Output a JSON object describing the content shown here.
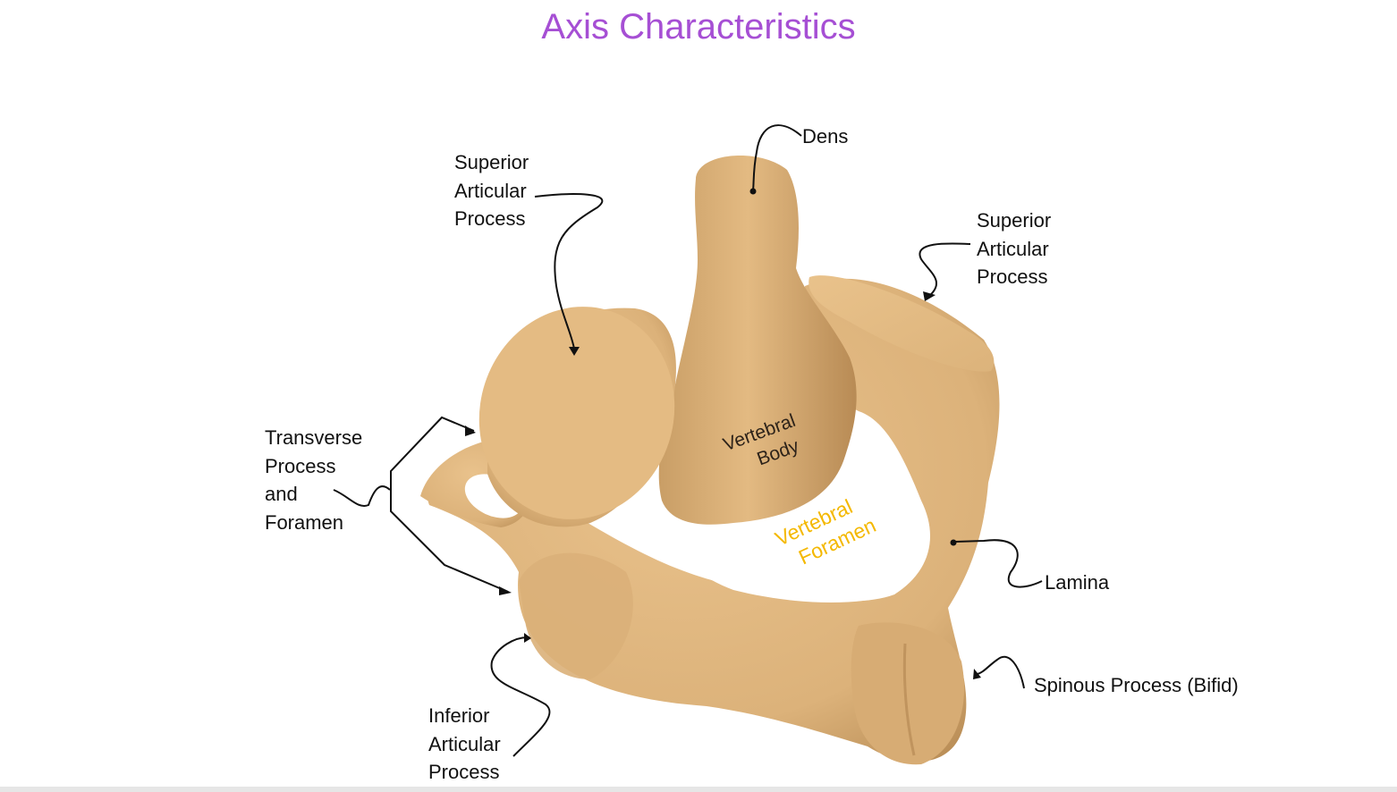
{
  "title": "Axis Characteristics",
  "colors": {
    "title": "#a64fd4",
    "bone": "#e2b87e",
    "bone_shadow": "#a77f4d",
    "foramen_label": "#f4b800",
    "label_text": "#111111"
  },
  "labels": {
    "dens": "Dens",
    "superior_articular_left": [
      "Superior",
      "Articular",
      "Process"
    ],
    "superior_articular_right": [
      "Superior",
      "Articular",
      "Process"
    ],
    "transverse_process": [
      "Transverse",
      "Process",
      "and",
      "Foramen"
    ],
    "lamina": "Lamina",
    "spinous_process": "Spinous Process (Bifid)",
    "inferior_articular": [
      "Inferior",
      "Articular",
      "Process"
    ],
    "vertebral_body": [
      "Vertebral",
      "Body"
    ],
    "vertebral_foramen": [
      "Vertebral",
      "Foramen"
    ]
  }
}
